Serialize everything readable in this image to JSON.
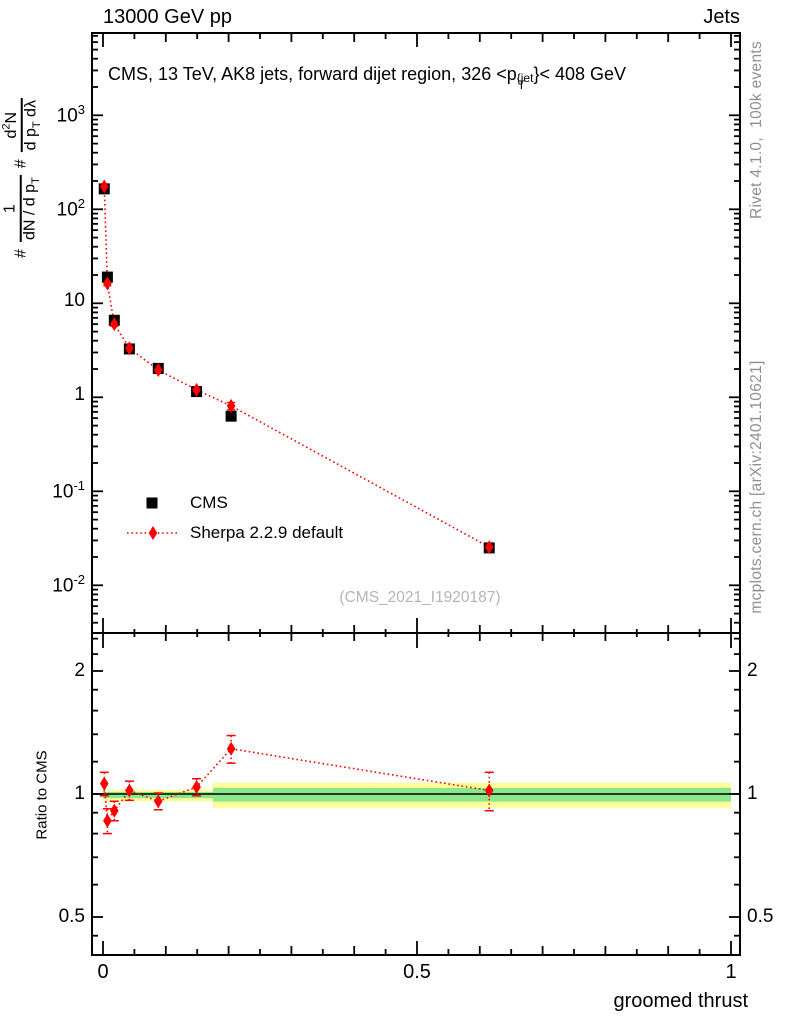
{
  "header": {
    "left": "13000 GeV pp",
    "right": "Jets"
  },
  "title": {
    "pre": "CMS, 13 TeV, AK8 jets, forward dijet region, 326 <p",
    "sup": "{jet",
    "sub": "T",
    "post": "}< 408 GeV"
  },
  "ylabel": {
    "hash1": "#",
    "f1_num": "1",
    "f1_den_pre": "dN / d p",
    "f1_den_sub": "T",
    "hash2": "#",
    "f2_num_pre": "d",
    "f2_num_sup": "2",
    "f2_num_post": "N",
    "f2_den_pre": "d p",
    "f2_den_sub": "T",
    "f2_den_post": " dλ"
  },
  "ratio_ylabel": "Ratio to CMS",
  "xlabel": "groomed thrust",
  "watermark": "(CMS_2021_I1920187)",
  "side_notes": {
    "top": "Rivet 4.1.0,  100k events",
    "bottom": "mcplots.cern.ch [arXiv:2401.10621]"
  },
  "legend": [
    {
      "label": "CMS",
      "marker": "square",
      "color": "#000000"
    },
    {
      "label": "Sherpa 2.2.9 default",
      "marker": "diamond",
      "color": "#ff0000"
    }
  ],
  "colors": {
    "data": "#000000",
    "mc": "#ff0000",
    "band_yellow": "#ffff99",
    "band_green": "#8be78b",
    "side_text": "#8f8f8f",
    "watermark": "#b5b5b5"
  },
  "chart_data": [
    {
      "type": "scatter",
      "panel": "main",
      "y_scale": "log",
      "x_range": [
        0,
        1
      ],
      "y_range": [
        0.0031,
        7500
      ],
      "x_major_ticks": [
        0,
        0.5,
        1
      ],
      "x_tick_labels": [
        "0",
        "0.5",
        "1"
      ],
      "y_major_ticks": [
        1000,
        100,
        10,
        1,
        0.1,
        0.01
      ],
      "x": [
        0.002,
        0.007,
        0.018,
        0.042,
        0.088,
        0.149,
        0.204,
        0.615
      ],
      "series": [
        {
          "name": "CMS",
          "marker": "square",
          "color": "#000000",
          "y": [
            165,
            19,
            6.6,
            3.27,
            2.03,
            1.15,
            0.63,
            0.025
          ],
          "y_err": [
            10,
            1.2,
            0.4,
            0.18,
            0.1,
            0.05,
            0.03,
            0.0015
          ]
        },
        {
          "name": "Sherpa 2.2.9 default",
          "marker": "diamond",
          "line": "dotted",
          "color": "#ff0000",
          "y": [
            175,
            16.3,
            6.0,
            3.33,
            1.95,
            1.2,
            0.81,
            0.0255
          ],
          "y_err": [
            9,
            0.9,
            0.3,
            0.15,
            0.09,
            0.05,
            0.07,
            0.002
          ]
        }
      ]
    },
    {
      "type": "ratio",
      "panel": "ratio",
      "y_scale": "log",
      "x_range": [
        0,
        1
      ],
      "y_range": [
        0.4,
        2.48
      ],
      "y_major_ticks": [
        0.5,
        1,
        2
      ],
      "y_tick_labels": [
        "0.5",
        "1",
        "2"
      ],
      "reference_line": 1,
      "x": [
        0.002,
        0.007,
        0.018,
        0.042,
        0.088,
        0.149,
        0.204,
        0.615
      ],
      "ratio": [
        1.06,
        0.86,
        0.91,
        1.02,
        0.96,
        1.04,
        1.29,
        1.02
      ],
      "ratio_err": [
        0.07,
        0.06,
        0.05,
        0.055,
        0.045,
        0.05,
        0.1,
        0.11
      ],
      "bands": [
        {
          "x0": 0,
          "x1": 0.175,
          "yellow": [
            0.96,
            1.025
          ],
          "green": [
            0.977,
            1.012
          ]
        },
        {
          "x0": 0.175,
          "x1": 1.0,
          "yellow": [
            0.925,
            1.065
          ],
          "green": [
            0.958,
            1.035
          ]
        }
      ]
    }
  ]
}
